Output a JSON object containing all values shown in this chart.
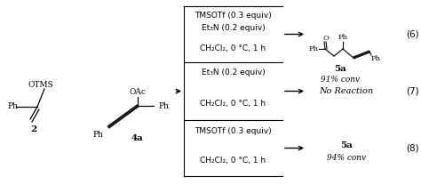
{
  "bg_color": "#ffffff",
  "figsize": [
    4.74,
    2.08
  ],
  "dpi": 100,
  "reaction1_top1": "TMSOTf (0.3 equiv)",
  "reaction1_top2": "Et₃N (0.2 equiv)",
  "reaction1_bot": "CH₂Cl₂, 0 °C, 1 h",
  "reaction2_top": "Et₃N (0.2 equiv)",
  "reaction2_bot": "CH₂Cl₂, 0 °C, 1 h",
  "reaction3_top": "TMSOTf (0.3 equiv)",
  "reaction3_bot": "CH₂Cl₂, 0 °C, 1 h",
  "product1_label": "5a",
  "product1_conv": "91% conv",
  "product2_text": "No Reaction",
  "product3_label": "5a",
  "product3_conv": "94% conv",
  "eq_num1": "(6)",
  "eq_num2": "(7)",
  "eq_num3": "(8)",
  "mol2_label": "2",
  "mol2_otms": "OTMS",
  "mol2_ph": "Ph",
  "mol4a_label": "4a",
  "mol4a_oac": "OAc",
  "mol4a_ph1": "Ph",
  "mol4a_ph2": "Ph",
  "prod_ph_left": "Ph",
  "prod_o": "O",
  "prod_ph_top": "Ph",
  "prod_ph_right": "Ph",
  "text_color": "#000000",
  "fs": 6.5,
  "fs_label": 7.5,
  "fs_eq": 7.5,
  "fs_struct": 6.0
}
